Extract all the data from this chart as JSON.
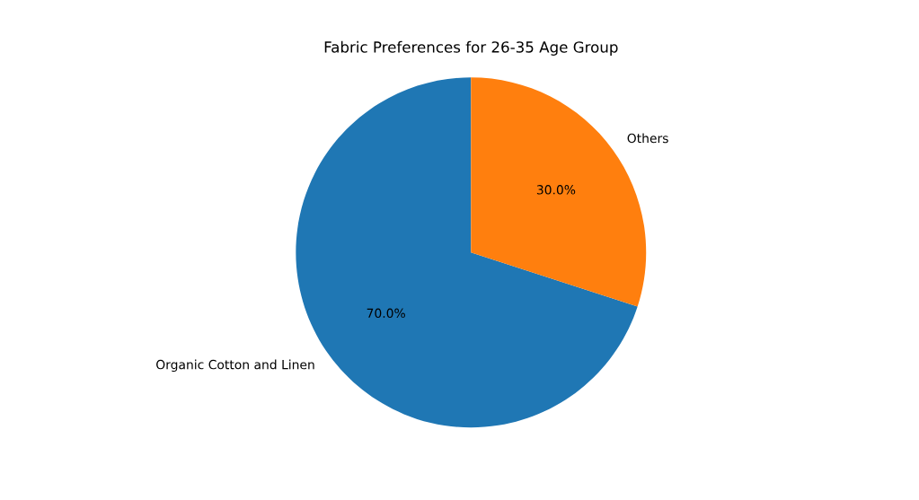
{
  "chart_data": {
    "type": "pie",
    "title": "Fabric Preferences for 26-35 Age Group",
    "categories": [
      "Organic Cotton and Linen",
      "Others"
    ],
    "values": [
      70,
      30
    ],
    "colors": [
      "#1f77b4",
      "#ff7f0e"
    ],
    "value_labels": [
      "70.0%",
      "30.0%"
    ]
  }
}
